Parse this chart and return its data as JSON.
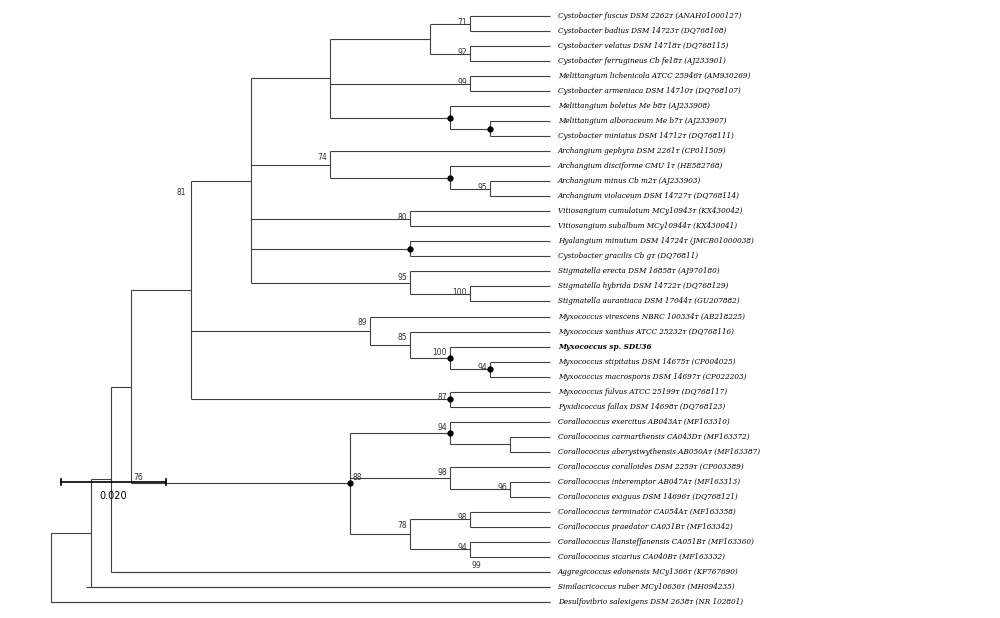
{
  "figsize": [
    10.0,
    6.18
  ],
  "dpi": 100,
  "bg_color": "#ffffff",
  "taxa": [
    "Cystobacter fuscus DSM 2262ᴛ (ANAH01000127)",
    "Cystobacter badius DSM 14723ᴛ (DQ768108)",
    "Cystobacter velatus DSM 14718ᴛ (DQ768115)",
    "Cystobacter ferrugineus Cb fe18ᴛ (AJ233901)",
    "Melittangium lichenicola ATCC 25946ᴛ (AM930269)",
    "Cystobacter armeniaca DSM 14710ᴛ (DQ768107)",
    "Melittangium boletus Me b8ᴛ (AJ233908)",
    "Melittangium alboraceum Me b7ᴛ (AJ233907)",
    "Cystobacter miniatus DSM 14712ᴛ (DQ768111)",
    "Archangium gephyra DSM 2261ᴛ (CP011509)",
    "Archangium disciforme CMU 1ᴛ (HE582768)",
    "Archangium minus Cb m2ᴛ (AJ233903)",
    "Archangium violaceum DSM 14727ᴛ (DQ768114)",
    "Vitiosangium cumulatum MCy10943ᴛ (KX430042)",
    "Vitiosangium subalbum MCy10944ᴛ (KX430041)",
    "Hyalangium minutum DSM 14724ᴛ (JMCB01000038)",
    "Cystobacter gracilis Cb gᴛ (DQ76811)",
    "Stigmatella erecta DSM 16858ᴛ (AJ970180)",
    "Stigmatella hybrida DSM 14722ᴛ (DQ768129)",
    "Stigmatella aurantiaca DSM 17044ᴛ (GU207882)",
    "Myxococcus virescens NBRC 100334ᴛ (AB218225)",
    "Myxococcus xanthus ATCC 25232ᴛ (DQ768116)",
    "Myxococcus sp. SDU36",
    "Myxococcus stipitatus DSM 14675ᴛ (CP004025)",
    "Myxococcus macrosporis DSM 14697ᴛ (CP022203)",
    "Myxococcus fulvus ATCC 25199ᴛ (DQ768117)",
    "Pyxidicoccus fallax DSM 14698ᴛ (DQ768123)",
    "Corallococcus exercitus AB043Aᴛ (MF163310)",
    "Corallococcus carmarthensis CA043Dᴛ (MF163372)",
    "Corallococcus aberystwythensis AB050Aᴛ (MF163387)",
    "Corallococcus coralloides DSM 2259ᴛ (CP003389)",
    "Corallococcus interemptor AB047Aᴛ (MF163313)",
    "Corallococcus exiguus DSM 14696ᴛ (DQ768121)",
    "Corallococcus terminator CA054Aᴛ (MF163358)",
    "Corallococcus praedator CA031Bᴛ (MF163342)",
    "Corallococcus llansteffanensis CA051Bᴛ (MF163360)",
    "Corallococcus sicarius CA040Bᴛ (MF163332)",
    "Aggregicoccus edonensis MCy1366ᴛ (KF767690)",
    "Similacricoccus ruber MCy10636ᴛ (MH094235)",
    "Desulfovibrio salexigens DSM 2638ᴛ (NR 102801)"
  ],
  "bold_taxa": [
    "Myxococcus sp. SDU36"
  ],
  "scalebar_label": "0.020"
}
